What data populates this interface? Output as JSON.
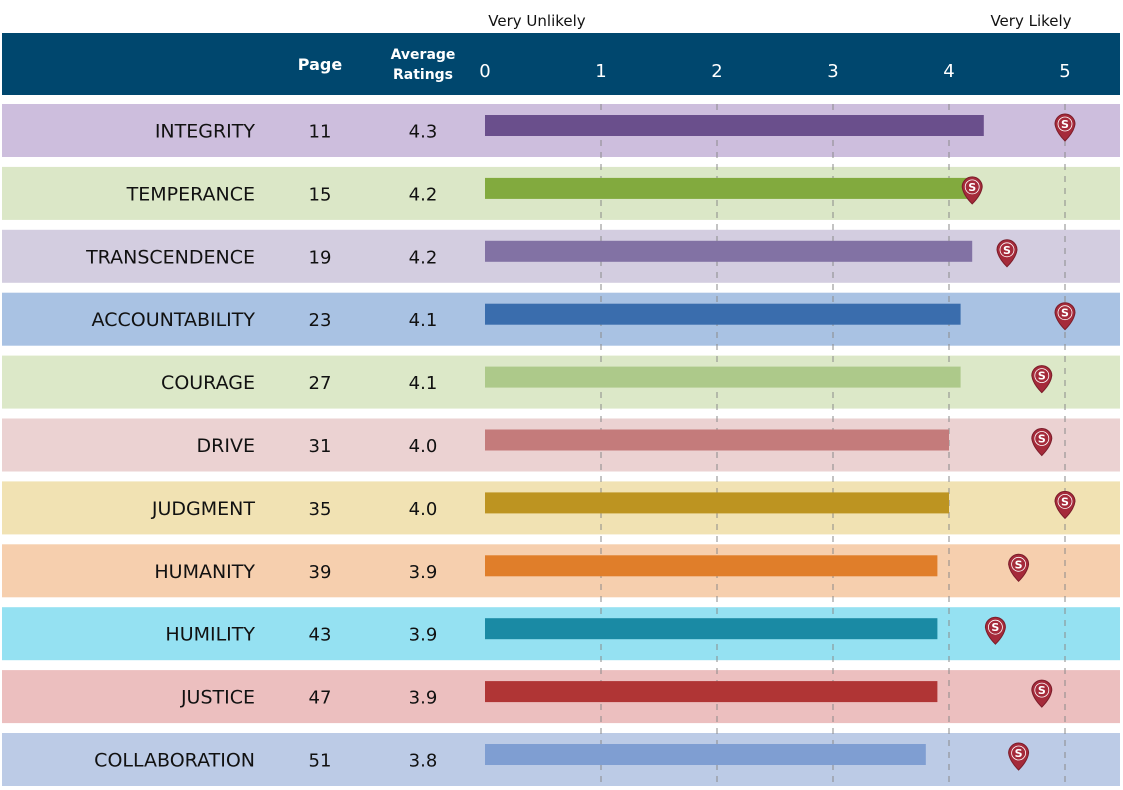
{
  "chart_data": {
    "type": "bar",
    "orientation": "horizontal",
    "scale_left_label": "Very Unlikely",
    "scale_right_label": "Very Likely",
    "header": {
      "col_page": "Page",
      "col_avg_line1": "Average",
      "col_avg_line2": "Ratings"
    },
    "xlim": [
      0,
      5
    ],
    "xticks": [
      "0",
      "1",
      "2",
      "3",
      "4",
      "5"
    ],
    "grid": "dashed vertical at integer ticks",
    "marker_label": "S",
    "header_color": "#00476e",
    "marker_color": "#a52a3a",
    "rows": [
      {
        "category": "INTEGRITY",
        "page": "11",
        "average": "4.3",
        "value": 4.3,
        "marker": 5.0,
        "row_color": "#cdbedd",
        "bar_color": "#6a4f8c"
      },
      {
        "category": "TEMPERANCE",
        "page": "15",
        "average": "4.2",
        "value": 4.2,
        "marker": 4.2,
        "row_color": "#dbe7c7",
        "bar_color": "#82aa3e"
      },
      {
        "category": "TRANSCENDENCE",
        "page": "19",
        "average": "4.2",
        "value": 4.2,
        "marker": 4.5,
        "row_color": "#d3cde0",
        "bar_color": "#8272a4"
      },
      {
        "category": "ACCOUNTABILITY",
        "page": "23",
        "average": "4.1",
        "value": 4.1,
        "marker": 5.0,
        "row_color": "#a9c2e3",
        "bar_color": "#3a6dad"
      },
      {
        "category": "COURAGE",
        "page": "27",
        "average": "4.1",
        "value": 4.1,
        "marker": 4.8,
        "row_color": "#dce8c8",
        "bar_color": "#adc98a"
      },
      {
        "category": "DRIVE",
        "page": "31",
        "average": "4.0",
        "value": 4.0,
        "marker": 4.8,
        "row_color": "#ebd2d2",
        "bar_color": "#c47b7b"
      },
      {
        "category": "JUDGMENT",
        "page": "35",
        "average": "4.0",
        "value": 4.0,
        "marker": 5.0,
        "row_color": "#f1e2b3",
        "bar_color": "#bd9421"
      },
      {
        "category": "HUMANITY",
        "page": "39",
        "average": "3.9",
        "value": 3.9,
        "marker": 4.6,
        "row_color": "#f6cfae",
        "bar_color": "#e07e2a"
      },
      {
        "category": "HUMILITY",
        "page": "43",
        "average": "3.9",
        "value": 3.9,
        "marker": 4.4,
        "row_color": "#95e1f2",
        "bar_color": "#1a8aa4"
      },
      {
        "category": "JUSTICE",
        "page": "47",
        "average": "3.9",
        "value": 3.9,
        "marker": 4.8,
        "row_color": "#ecbfbf",
        "bar_color": "#b03535"
      },
      {
        "category": "COLLABORATION",
        "page": "51",
        "average": "3.8",
        "value": 3.8,
        "marker": 4.6,
        "row_color": "#bccbe6",
        "bar_color": "#7f9ed2"
      }
    ]
  }
}
